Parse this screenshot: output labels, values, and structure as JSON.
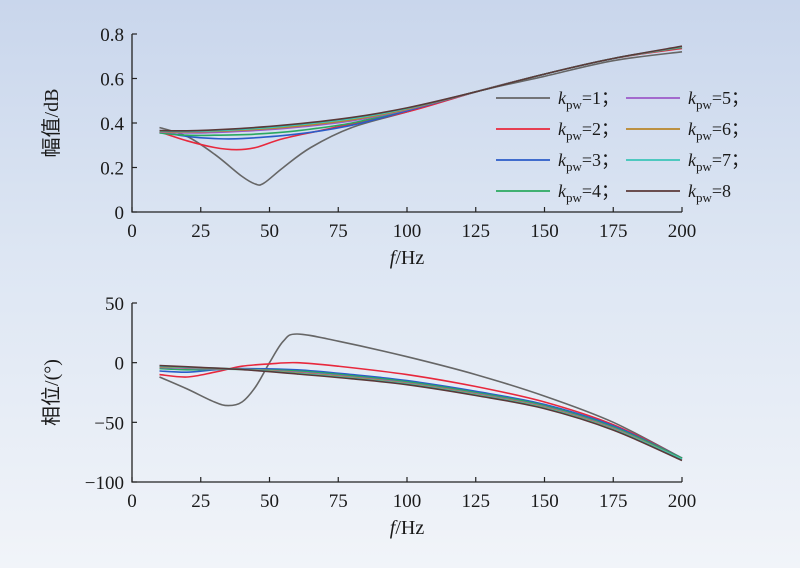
{
  "chart_data": [
    {
      "type": "line",
      "xlabel_italic": "f",
      "xlabel_rest": "/Hz",
      "ylabel": "幅值/dB",
      "xlim": [
        0,
        200
      ],
      "ylim": [
        0,
        0.8
      ],
      "xticks": [
        "0",
        "25",
        "50",
        "75",
        "100",
        "125",
        "150",
        "175",
        "200"
      ],
      "yticks": [
        "0",
        "0.2",
        "0.4",
        "0.6",
        "0.8"
      ],
      "grid": false,
      "legend": {
        "placement": "right",
        "entries": [
          {
            "k": "k",
            "sub": "pw",
            "text": "=1；"
          },
          {
            "k": "k",
            "sub": "pw",
            "text": "=2；"
          },
          {
            "k": "k",
            "sub": "pw",
            "text": "=3；"
          },
          {
            "k": "k",
            "sub": "pw",
            "text": "=4；"
          },
          {
            "k": "k",
            "sub": "pw",
            "text": "=5；"
          },
          {
            "k": "k",
            "sub": "pw",
            "text": "=6；"
          },
          {
            "k": "k",
            "sub": "pw",
            "text": "=7；"
          },
          {
            "k": "k",
            "sub": "pw",
            "text": "=8"
          }
        ]
      },
      "series": [
        {
          "color": "#666666",
          "points": [
            [
              10,
              0.38
            ],
            [
              20,
              0.34
            ],
            [
              30,
              0.26
            ],
            [
              40,
              0.16
            ],
            [
              45,
              0.125
            ],
            [
              48,
              0.13
            ],
            [
              55,
              0.2
            ],
            [
              65,
              0.29
            ],
            [
              80,
              0.38
            ],
            [
              100,
              0.45
            ],
            [
              125,
              0.54
            ],
            [
              150,
              0.61
            ],
            [
              175,
              0.68
            ],
            [
              200,
              0.72
            ]
          ]
        },
        {
          "color": "#e8283c",
          "points": [
            [
              10,
              0.36
            ],
            [
              20,
              0.32
            ],
            [
              30,
              0.29
            ],
            [
              38,
              0.28
            ],
            [
              45,
              0.29
            ],
            [
              55,
              0.33
            ],
            [
              70,
              0.37
            ],
            [
              100,
              0.45
            ],
            [
              125,
              0.54
            ],
            [
              150,
              0.62
            ],
            [
              175,
              0.69
            ],
            [
              200,
              0.735
            ]
          ]
        },
        {
          "color": "#2a5cc8",
          "points": [
            [
              10,
              0.36
            ],
            [
              20,
              0.34
            ],
            [
              30,
              0.33
            ],
            [
              40,
              0.33
            ],
            [
              60,
              0.35
            ],
            [
              80,
              0.39
            ],
            [
              100,
              0.455
            ],
            [
              125,
              0.54
            ],
            [
              150,
              0.62
            ],
            [
              175,
              0.69
            ],
            [
              200,
              0.74
            ]
          ]
        },
        {
          "color": "#2aa860",
          "points": [
            [
              10,
              0.355
            ],
            [
              20,
              0.345
            ],
            [
              30,
              0.345
            ],
            [
              45,
              0.35
            ],
            [
              60,
              0.365
            ],
            [
              80,
              0.4
            ],
            [
              100,
              0.46
            ],
            [
              125,
              0.54
            ],
            [
              150,
              0.62
            ],
            [
              175,
              0.69
            ],
            [
              200,
              0.74
            ]
          ]
        },
        {
          "color": "#9c5ac8",
          "points": [
            [
              10,
              0.36
            ],
            [
              20,
              0.355
            ],
            [
              35,
              0.36
            ],
            [
              55,
              0.375
            ],
            [
              80,
              0.41
            ],
            [
              100,
              0.46
            ],
            [
              125,
              0.54
            ],
            [
              150,
              0.62
            ],
            [
              175,
              0.69
            ],
            [
              200,
              0.742
            ]
          ]
        },
        {
          "color": "#b8862a",
          "points": [
            [
              10,
              0.362
            ],
            [
              20,
              0.36
            ],
            [
              35,
              0.365
            ],
            [
              55,
              0.38
            ],
            [
              80,
              0.415
            ],
            [
              100,
              0.462
            ],
            [
              125,
              0.54
            ],
            [
              150,
              0.62
            ],
            [
              175,
              0.69
            ],
            [
              200,
              0.742
            ]
          ]
        },
        {
          "color": "#3ac4b8",
          "points": [
            [
              10,
              0.364
            ],
            [
              20,
              0.362
            ],
            [
              35,
              0.368
            ],
            [
              55,
              0.385
            ],
            [
              80,
              0.42
            ],
            [
              100,
              0.465
            ],
            [
              125,
              0.54
            ],
            [
              150,
              0.62
            ],
            [
              175,
              0.69
            ],
            [
              200,
              0.743
            ]
          ]
        },
        {
          "color": "#5a3838",
          "points": [
            [
              10,
              0.366
            ],
            [
              20,
              0.365
            ],
            [
              35,
              0.372
            ],
            [
              55,
              0.39
            ],
            [
              80,
              0.425
            ],
            [
              100,
              0.468
            ],
            [
              125,
              0.54
            ],
            [
              150,
              0.62
            ],
            [
              175,
              0.69
            ],
            [
              200,
              0.745
            ]
          ]
        }
      ]
    },
    {
      "type": "line",
      "xlabel_italic": "f",
      "xlabel_rest": "/Hz",
      "ylabel": "相位/(°)",
      "xlim": [
        0,
        200
      ],
      "ylim": [
        -100,
        50
      ],
      "xticks": [
        "0",
        "25",
        "50",
        "75",
        "100",
        "125",
        "150",
        "175",
        "200"
      ],
      "yticks": [
        "50",
        "0",
        "−50",
        "−100"
      ],
      "grid": false,
      "series": [
        {
          "color": "#666666",
          "points": [
            [
              10,
              -12
            ],
            [
              20,
              -22
            ],
            [
              30,
              -33
            ],
            [
              35,
              -36
            ],
            [
              40,
              -33
            ],
            [
              45,
              -20
            ],
            [
              50,
              0
            ],
            [
              55,
              18
            ],
            [
              60,
              24
            ],
            [
              75,
              18
            ],
            [
              100,
              5
            ],
            [
              125,
              -10
            ],
            [
              150,
              -28
            ],
            [
              175,
              -50
            ],
            [
              200,
              -80
            ]
          ]
        },
        {
          "color": "#e8283c",
          "points": [
            [
              10,
              -10
            ],
            [
              20,
              -12
            ],
            [
              30,
              -8
            ],
            [
              40,
              -3
            ],
            [
              50,
              -1
            ],
            [
              60,
              0
            ],
            [
              75,
              -3
            ],
            [
              100,
              -10
            ],
            [
              125,
              -20
            ],
            [
              150,
              -33
            ],
            [
              175,
              -52
            ],
            [
              200,
              -80
            ]
          ]
        },
        {
          "color": "#2a5cc8",
          "points": [
            [
              10,
              -7
            ],
            [
              20,
              -8
            ],
            [
              30,
              -6
            ],
            [
              40,
              -5
            ],
            [
              60,
              -6
            ],
            [
              80,
              -10
            ],
            [
              100,
              -15
            ],
            [
              125,
              -24
            ],
            [
              150,
              -35
            ],
            [
              175,
              -53
            ],
            [
              200,
              -80
            ]
          ]
        },
        {
          "color": "#2aa860",
          "points": [
            [
              10,
              -5
            ],
            [
              20,
              -6
            ],
            [
              35,
              -5.5
            ],
            [
              60,
              -7
            ],
            [
              80,
              -11
            ],
            [
              100,
              -16
            ],
            [
              125,
              -25
            ],
            [
              150,
              -36
            ],
            [
              175,
              -54
            ],
            [
              200,
              -80
            ]
          ]
        },
        {
          "color": "#9c5ac8",
          "points": [
            [
              10,
              -4
            ],
            [
              25,
              -5
            ],
            [
              40,
              -5.5
            ],
            [
              60,
              -8
            ],
            [
              80,
              -12
            ],
            [
              100,
              -17
            ],
            [
              125,
              -26
            ],
            [
              150,
              -37
            ],
            [
              175,
              -55
            ],
            [
              200,
              -81
            ]
          ]
        },
        {
          "color": "#b8862a",
          "points": [
            [
              10,
              -3.5
            ],
            [
              25,
              -4.5
            ],
            [
              40,
              -5.5
            ],
            [
              60,
              -8.5
            ],
            [
              80,
              -12.5
            ],
            [
              100,
              -17.5
            ],
            [
              125,
              -26.5
            ],
            [
              150,
              -37.5
            ],
            [
              175,
              -55.5
            ],
            [
              200,
              -81
            ]
          ]
        },
        {
          "color": "#3ac4b8",
          "points": [
            [
              10,
              -3
            ],
            [
              25,
              -4.2
            ],
            [
              40,
              -5.6
            ],
            [
              60,
              -9
            ],
            [
              80,
              -13
            ],
            [
              100,
              -18
            ],
            [
              125,
              -27
            ],
            [
              150,
              -38
            ],
            [
              175,
              -56
            ],
            [
              200,
              -81
            ]
          ]
        },
        {
          "color": "#5a3838",
          "points": [
            [
              10,
              -2.5
            ],
            [
              25,
              -4
            ],
            [
              40,
              -5.8
            ],
            [
              60,
              -9.5
            ],
            [
              80,
              -13.5
            ],
            [
              100,
              -18.5
            ],
            [
              125,
              -27.5
            ],
            [
              150,
              -38.5
            ],
            [
              175,
              -56.5
            ],
            [
              200,
              -82
            ]
          ]
        }
      ]
    }
  ]
}
